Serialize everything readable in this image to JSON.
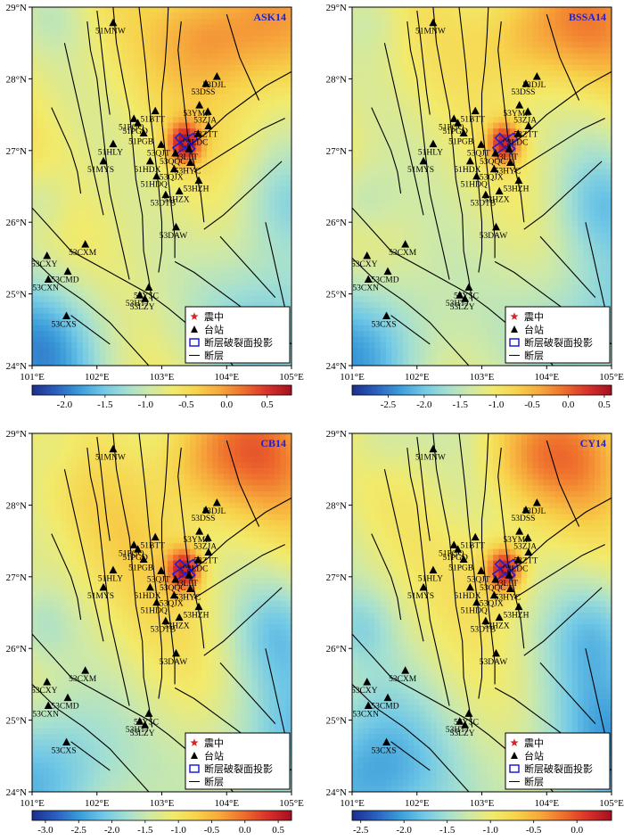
{
  "axes": {
    "lon_ticks": [
      101,
      102,
      103,
      104,
      105
    ],
    "lat_ticks": [
      24,
      25,
      26,
      27,
      28,
      29
    ],
    "lon_labels": [
      "101°E",
      "102°E",
      "103°E",
      "104°E",
      "105°E"
    ],
    "lat_labels": [
      "24°N",
      "25°N",
      "26°N",
      "27°N",
      "28°N",
      "29°N"
    ],
    "lon_range": [
      101,
      105
    ],
    "lat_range": [
      24,
      29
    ]
  },
  "legend": {
    "items": [
      {
        "symbol": "star",
        "label": "震中"
      },
      {
        "symbol": "triangle",
        "label": "台站"
      },
      {
        "symbol": "rectangle",
        "label": "断层破裂面投影"
      },
      {
        "symbol": "line",
        "label": "断层"
      }
    ]
  },
  "colors": {
    "epicenter": "#d62728",
    "station": "#000000",
    "rupture": "#1f1fd6",
    "fault": "#000000",
    "title": "#2222cc"
  },
  "colorscale": [
    "#1c2e8c",
    "#2a5fbf",
    "#3a9bd9",
    "#6fc7e6",
    "#a3dfd2",
    "#cfe9a6",
    "#f2ea6b",
    "#f7d24a",
    "#f6a63b",
    "#ee6d2c",
    "#d9302a",
    "#a4101f"
  ],
  "epicenter": {
    "lon": 103.36,
    "lat": 27.1
  },
  "stations": [
    {
      "name": "51MNW",
      "lon": 102.25,
      "lat": 28.78
    },
    {
      "name": "53DJL",
      "lon": 103.85,
      "lat": 28.03
    },
    {
      "name": "53DSS",
      "lon": 103.68,
      "lat": 27.93
    },
    {
      "name": "51BTT",
      "lon": 102.9,
      "lat": 27.55
    },
    {
      "name": "53YML",
      "lon": 103.58,
      "lat": 27.63
    },
    {
      "name": "53ZJA",
      "lon": 103.71,
      "lat": 27.54
    },
    {
      "name": "51PGQ",
      "lon": 102.57,
      "lat": 27.44
    },
    {
      "name": "51PGD",
      "lon": 102.63,
      "lat": 27.38
    },
    {
      "name": "53ZTT",
      "lon": 103.72,
      "lat": 27.34
    },
    {
      "name": "51PGB",
      "lon": 102.72,
      "lat": 27.24
    },
    {
      "name": "53LDC",
      "lon": 103.56,
      "lat": 27.23
    },
    {
      "name": "51HLY",
      "lon": 102.25,
      "lat": 27.09
    },
    {
      "name": "53QJT",
      "lon": 102.99,
      "lat": 27.08
    },
    {
      "name": "53LLT",
      "lon": 103.42,
      "lat": 27.02
    },
    {
      "name": "53QQC",
      "lon": 103.21,
      "lat": 26.96
    },
    {
      "name": "51MYS",
      "lon": 102.1,
      "lat": 26.85
    },
    {
      "name": "51HDX",
      "lon": 102.82,
      "lat": 26.85
    },
    {
      "name": "53HYC",
      "lon": 103.44,
      "lat": 26.83
    },
    {
      "name": "53QJX",
      "lon": 103.19,
      "lat": 26.74
    },
    {
      "name": "51HDQ",
      "lon": 102.92,
      "lat": 26.64
    },
    {
      "name": "53HZH",
      "lon": 103.57,
      "lat": 26.58
    },
    {
      "name": "53HZX",
      "lon": 103.27,
      "lat": 26.43
    },
    {
      "name": "53DTB",
      "lon": 103.06,
      "lat": 26.38
    },
    {
      "name": "53DAW",
      "lon": 103.22,
      "lat": 25.93
    },
    {
      "name": "53CXY",
      "lon": 101.23,
      "lat": 25.53
    },
    {
      "name": "53CXM",
      "lon": 101.82,
      "lat": 25.69
    },
    {
      "name": "53CMD",
      "lon": 101.55,
      "lat": 25.31
    },
    {
      "name": "53CXN",
      "lon": 101.25,
      "lat": 25.2
    },
    {
      "name": "53YSC",
      "lon": 102.8,
      "lat": 25.09
    },
    {
      "name": "53HTJ",
      "lon": 102.66,
      "lat": 24.98
    },
    {
      "name": "53LZY",
      "lon": 102.74,
      "lat": 24.93
    },
    {
      "name": "53CXS",
      "lon": 101.53,
      "lat": 24.69
    }
  ],
  "panels": [
    {
      "title": "ASK14",
      "colorbar": {
        "min": -2.4,
        "max": 0.8,
        "tick_values": [
          -2.0,
          -1.5,
          -1.0,
          -0.5,
          0.0,
          0.5
        ],
        "tick_labels": [
          "-2.0",
          "-1.5",
          "-1.0",
          "-0.5",
          "0.0",
          "0.5"
        ]
      }
    },
    {
      "title": "BSSA14",
      "colorbar": {
        "min": -3.0,
        "max": 0.6,
        "tick_values": [
          -2.5,
          -2.0,
          -1.5,
          -1.0,
          -0.5,
          0.0,
          0.5
        ],
        "tick_labels": [
          "-2.5",
          "-2.0",
          "-1.5",
          "-1.0",
          "-0.5",
          "0.0",
          "0.5"
        ]
      }
    },
    {
      "title": "CB14",
      "colorbar": {
        "min": -3.2,
        "max": 0.7,
        "tick_values": [
          -3.0,
          -2.5,
          -2.0,
          -1.5,
          -1.0,
          -0.5,
          0.0,
          0.5
        ],
        "tick_labels": [
          "-3.0",
          "-2.5",
          "-2.0",
          "-1.5",
          "-1.0",
          "-0.5",
          "0.0",
          "0.5"
        ]
      }
    },
    {
      "title": "CY14",
      "colorbar": {
        "min": -2.6,
        "max": 0.4,
        "tick_values": [
          -2.5,
          -2.0,
          -1.5,
          -1.0,
          -0.5,
          0.0
        ],
        "tick_labels": [
          "-2.5",
          "-2.0",
          "-1.5",
          "-1.0",
          "-0.5",
          "0.0"
        ]
      }
    }
  ]
}
